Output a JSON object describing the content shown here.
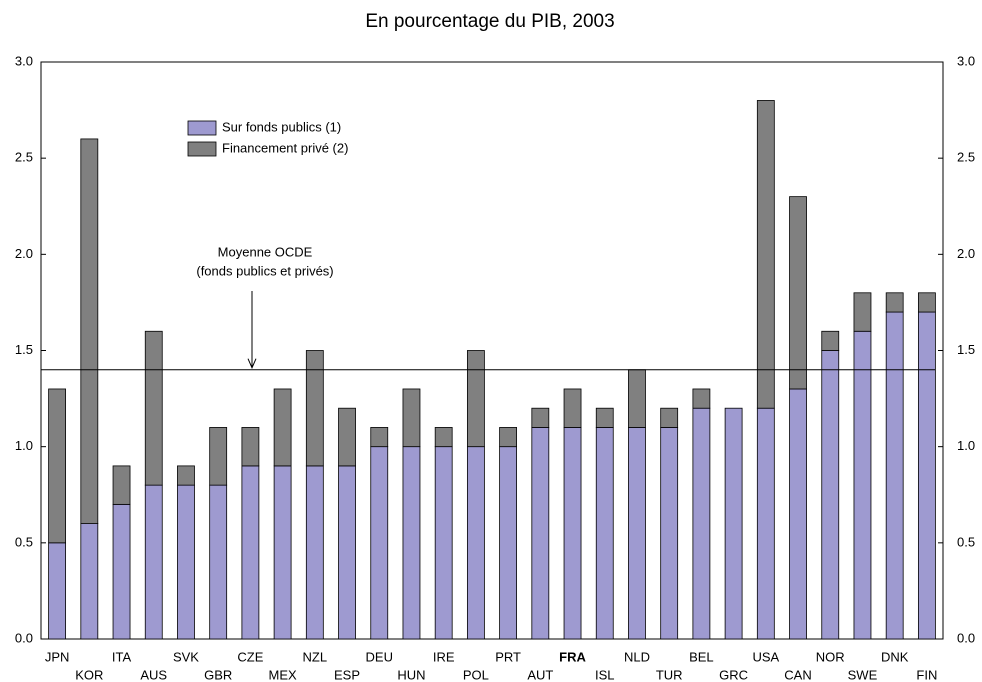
{
  "chart_data": {
    "type": "stacked_bar",
    "title": "En pourcentage du PIB, 2003",
    "categories": [
      "JPN",
      "KOR",
      "ITA",
      "AUS",
      "SVK",
      "GBR",
      "CZE",
      "MEX",
      "NZL",
      "ESP",
      "DEU",
      "HUN",
      "IRE",
      "POL",
      "PRT",
      "AUT",
      "FRA",
      "ISL",
      "NLD",
      "TUR",
      "BEL",
      "GRC",
      "USA",
      "CAN",
      "NOR",
      "SWE",
      "DNK",
      "FIN"
    ],
    "highlight": "FRA",
    "series": [
      {
        "name": "Sur fonds publics (1)",
        "color": "#9e9ad0",
        "values": [
          0.5,
          0.6,
          0.7,
          0.8,
          0.8,
          0.8,
          0.9,
          0.9,
          0.9,
          0.9,
          1.0,
          1.0,
          1.0,
          1.0,
          1.0,
          1.1,
          1.1,
          1.1,
          1.1,
          1.1,
          1.2,
          1.2,
          1.2,
          1.3,
          1.5,
          1.6,
          1.7,
          1.7
        ]
      },
      {
        "name": "Financement privé (2)",
        "color": "#808080",
        "values": [
          0.8,
          2.0,
          0.2,
          0.8,
          0.1,
          0.3,
          0.2,
          0.4,
          0.6,
          0.3,
          0.1,
          0.3,
          0.1,
          0.5,
          0.1,
          0.1,
          0.2,
          0.1,
          0.3,
          0.1,
          0.1,
          0,
          1.6,
          1.0,
          0.1,
          0.2,
          0.1,
          0.1
        ]
      }
    ],
    "reference_line": {
      "value": 1.4,
      "annotations": [
        "Moyenne OCDE",
        "(fonds publics et privés)"
      ]
    },
    "ylim": [
      0,
      3
    ],
    "yticks": [
      {
        "value": 0,
        "label": "0.0"
      },
      0.5,
      {
        "value": 1,
        "label": "1.0"
      },
      1.5,
      {
        "value": 2,
        "label": "2.0"
      },
      2.5,
      {
        "value": 3,
        "label": "3.0"
      }
    ]
  }
}
